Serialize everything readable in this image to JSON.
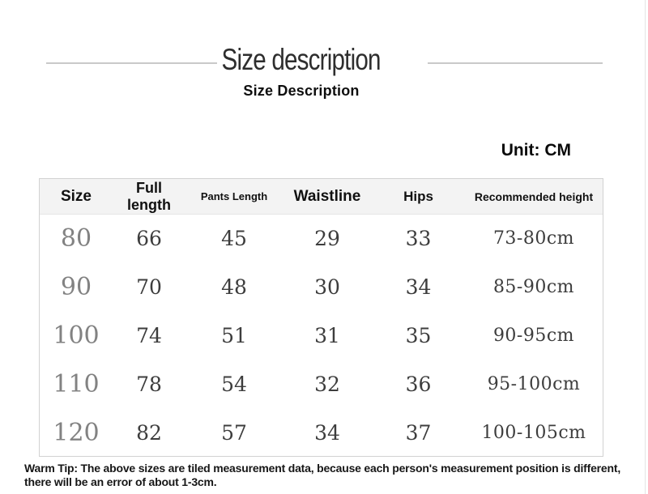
{
  "page": {
    "title": "Size description",
    "subtitle": "Size Description",
    "unit_label": "Unit: CM"
  },
  "table": {
    "columns": [
      {
        "key": "size",
        "label": "Size"
      },
      {
        "key": "full_length",
        "label": "Full length"
      },
      {
        "key": "pants_length",
        "label": "Pants Length"
      },
      {
        "key": "waistline",
        "label": "Waistline"
      },
      {
        "key": "hips",
        "label": "Hips"
      },
      {
        "key": "recommended_height",
        "label": "Recommended height"
      }
    ],
    "rows": [
      [
        "80",
        "66",
        "45",
        "29",
        "33",
        "73-80cm"
      ],
      [
        "90",
        "70",
        "48",
        "30",
        "34",
        "85-90cm"
      ],
      [
        "100",
        "74",
        "51",
        "31",
        "35",
        "90-95cm"
      ],
      [
        "110",
        "78",
        "54",
        "32",
        "36",
        "95-100cm"
      ],
      [
        "120",
        "82",
        "57",
        "34",
        "37",
        "100-105cm"
      ]
    ]
  },
  "footer": {
    "warm_tip_line1": "Warm Tip: The above sizes are tiled measurement data, because each person's measurement position is different,",
    "warm_tip_line2": "there will be an error of about 1-3cm."
  },
  "colors": {
    "title_text": "#2e2e2e",
    "header_background": "#f3f3f3",
    "table_border": "#d2d2d2",
    "body_text": "#3d3d3d",
    "size_column_text": "#828282",
    "rule_line": "#c9c9c9"
  }
}
